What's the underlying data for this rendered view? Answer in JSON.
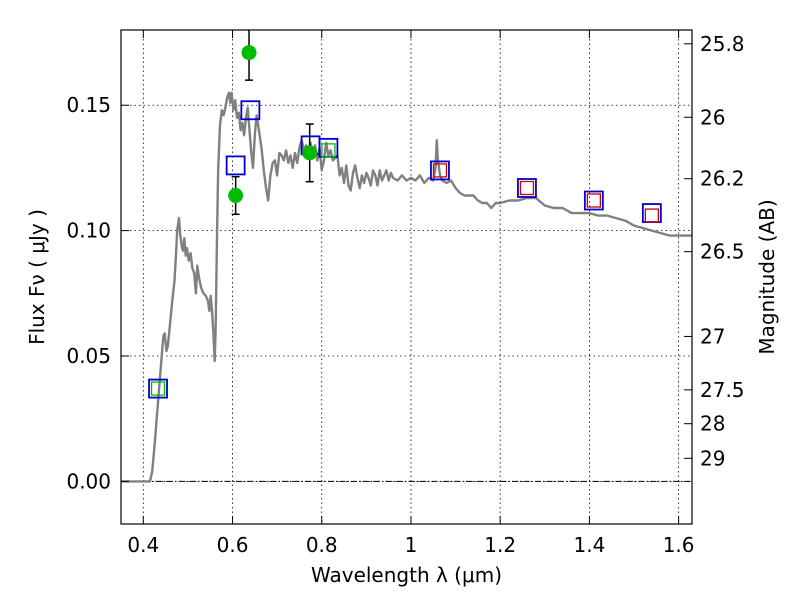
{
  "chart_data": {
    "type": "scatter",
    "title": "",
    "xlabel": "Wavelength  λ (μm)",
    "ylabel": "Flux  Fν  ( μJy )",
    "y2label": "Magnitude (AB)",
    "xlim": [
      0.35,
      1.63
    ],
    "ylim": [
      -0.017,
      0.18
    ],
    "xticks": [
      0.4,
      0.6,
      0.8,
      1.0,
      1.2,
      1.4,
      1.6
    ],
    "xtick_labels": [
      "0.4",
      "0.6",
      "0.8",
      "1",
      "1.2",
      "1.4",
      "1.6"
    ],
    "yticks": [
      0.0,
      0.05,
      0.1,
      0.15
    ],
    "ytick_labels": [
      "0.00",
      "0.05",
      "0.10",
      "0.15"
    ],
    "mag_ticks": [
      {
        "label": "25.8",
        "flux": 0.1745
      },
      {
        "label": "26",
        "flux": 0.1452
      },
      {
        "label": "26.2",
        "flux": 0.1207
      },
      {
        "label": "26.5",
        "flux": 0.0916
      },
      {
        "label": "27",
        "flux": 0.0578
      },
      {
        "label": "27.5",
        "flux": 0.0365
      },
      {
        "label": "28",
        "flux": 0.023
      },
      {
        "label": "29",
        "flux": 0.0092
      }
    ],
    "grid": true,
    "zero_line": 0.0,
    "series": [
      {
        "style": "sed_line",
        "color": "#808080",
        "points": [
          [
            0.35,
            0.0
          ],
          [
            0.415,
            0.0
          ],
          [
            0.42,
            0.004
          ],
          [
            0.425,
            0.014
          ],
          [
            0.43,
            0.025
          ],
          [
            0.435,
            0.036
          ],
          [
            0.44,
            0.047
          ],
          [
            0.445,
            0.058
          ],
          [
            0.448,
            0.059
          ],
          [
            0.452,
            0.052
          ],
          [
            0.455,
            0.054
          ],
          [
            0.46,
            0.063
          ],
          [
            0.465,
            0.072
          ],
          [
            0.47,
            0.08
          ],
          [
            0.473,
            0.09
          ],
          [
            0.476,
            0.1
          ],
          [
            0.48,
            0.105
          ],
          [
            0.483,
            0.098
          ],
          [
            0.486,
            0.094
          ],
          [
            0.489,
            0.092
          ],
          [
            0.492,
            0.097
          ],
          [
            0.495,
            0.09
          ],
          [
            0.498,
            0.093
          ],
          [
            0.502,
            0.088
          ],
          [
            0.506,
            0.091
          ],
          [
            0.51,
            0.085
          ],
          [
            0.514,
            0.083
          ],
          [
            0.518,
            0.075
          ],
          [
            0.521,
            0.086
          ],
          [
            0.525,
            0.081
          ],
          [
            0.53,
            0.077
          ],
          [
            0.535,
            0.075
          ],
          [
            0.54,
            0.074
          ],
          [
            0.545,
            0.072
          ],
          [
            0.548,
            0.068
          ],
          [
            0.551,
            0.074
          ],
          [
            0.554,
            0.068
          ],
          [
            0.557,
            0.06
          ],
          [
            0.56,
            0.048
          ],
          [
            0.562,
            0.06
          ],
          [
            0.565,
            0.095
          ],
          [
            0.568,
            0.125
          ],
          [
            0.572,
            0.142
          ],
          [
            0.576,
            0.148
          ],
          [
            0.58,
            0.146
          ],
          [
            0.584,
            0.149
          ],
          [
            0.588,
            0.153
          ],
          [
            0.592,
            0.155
          ],
          [
            0.595,
            0.151
          ],
          [
            0.598,
            0.155
          ],
          [
            0.602,
            0.148
          ],
          [
            0.606,
            0.152
          ],
          [
            0.61,
            0.145
          ],
          [
            0.614,
            0.147
          ],
          [
            0.618,
            0.14
          ],
          [
            0.622,
            0.143
          ],
          [
            0.626,
            0.138
          ],
          [
            0.63,
            0.145
          ],
          [
            0.634,
            0.149
          ],
          [
            0.638,
            0.14
          ],
          [
            0.642,
            0.131
          ],
          [
            0.646,
            0.125
          ],
          [
            0.65,
            0.138
          ],
          [
            0.654,
            0.146
          ],
          [
            0.66,
            0.139
          ],
          [
            0.665,
            0.133
          ],
          [
            0.67,
            0.124
          ],
          [
            0.675,
            0.117
          ],
          [
            0.68,
            0.112
          ],
          [
            0.685,
            0.122
          ],
          [
            0.69,
            0.127
          ],
          [
            0.695,
            0.128
          ],
          [
            0.7,
            0.122
          ],
          [
            0.705,
            0.131
          ],
          [
            0.71,
            0.13
          ],
          [
            0.715,
            0.128
          ],
          [
            0.72,
            0.132
          ],
          [
            0.725,
            0.127
          ],
          [
            0.73,
            0.13
          ],
          [
            0.735,
            0.125
          ],
          [
            0.74,
            0.131
          ],
          [
            0.745,
            0.127
          ],
          [
            0.75,
            0.133
          ],
          [
            0.755,
            0.136
          ],
          [
            0.76,
            0.132
          ],
          [
            0.765,
            0.134
          ],
          [
            0.77,
            0.132
          ],
          [
            0.775,
            0.135
          ],
          [
            0.78,
            0.13
          ],
          [
            0.785,
            0.134
          ],
          [
            0.79,
            0.128
          ],
          [
            0.795,
            0.133
          ],
          [
            0.8,
            0.124
          ],
          [
            0.805,
            0.128
          ],
          [
            0.81,
            0.135
          ],
          [
            0.815,
            0.13
          ],
          [
            0.82,
            0.132
          ],
          [
            0.825,
            0.128
          ],
          [
            0.83,
            0.129
          ],
          [
            0.835,
            0.13
          ],
          [
            0.84,
            0.122
          ],
          [
            0.845,
            0.125
          ],
          [
            0.85,
            0.119
          ],
          [
            0.855,
            0.126
          ],
          [
            0.86,
            0.118
          ],
          [
            0.865,
            0.116
          ],
          [
            0.87,
            0.123
          ],
          [
            0.875,
            0.126
          ],
          [
            0.88,
            0.121
          ],
          [
            0.885,
            0.117
          ],
          [
            0.89,
            0.122
          ],
          [
            0.895,
            0.119
          ],
          [
            0.9,
            0.123
          ],
          [
            0.905,
            0.121
          ],
          [
            0.91,
            0.118
          ],
          [
            0.915,
            0.124
          ],
          [
            0.92,
            0.122
          ],
          [
            0.925,
            0.118
          ],
          [
            0.93,
            0.124
          ],
          [
            0.935,
            0.12
          ],
          [
            0.94,
            0.122
          ],
          [
            0.945,
            0.124
          ],
          [
            0.95,
            0.12
          ],
          [
            0.955,
            0.123
          ],
          [
            0.96,
            0.121
          ],
          [
            0.97,
            0.12
          ],
          [
            0.98,
            0.122
          ],
          [
            0.99,
            0.12
          ],
          [
            1.0,
            0.121
          ],
          [
            1.01,
            0.12
          ],
          [
            1.02,
            0.122
          ],
          [
            1.03,
            0.119
          ],
          [
            1.04,
            0.121
          ],
          [
            1.05,
            0.12
          ],
          [
            1.055,
            0.125
          ],
          [
            1.058,
            0.136
          ],
          [
            1.06,
            0.129
          ],
          [
            1.065,
            0.122
          ],
          [
            1.07,
            0.12
          ],
          [
            1.08,
            0.119
          ],
          [
            1.09,
            0.12
          ],
          [
            1.1,
            0.117
          ],
          [
            1.11,
            0.115
          ],
          [
            1.12,
            0.114
          ],
          [
            1.14,
            0.114
          ],
          [
            1.15,
            0.112
          ],
          [
            1.16,
            0.111
          ],
          [
            1.17,
            0.111
          ],
          [
            1.18,
            0.109
          ],
          [
            1.19,
            0.111
          ],
          [
            1.2,
            0.111
          ],
          [
            1.22,
            0.112
          ],
          [
            1.24,
            0.112
          ],
          [
            1.26,
            0.113
          ],
          [
            1.28,
            0.113
          ],
          [
            1.3,
            0.11
          ],
          [
            1.32,
            0.109
          ],
          [
            1.34,
            0.109
          ],
          [
            1.36,
            0.107
          ],
          [
            1.38,
            0.107
          ],
          [
            1.4,
            0.107
          ],
          [
            1.42,
            0.106
          ],
          [
            1.44,
            0.106
          ],
          [
            1.46,
            0.105
          ],
          [
            1.48,
            0.104
          ],
          [
            1.5,
            0.102
          ],
          [
            1.52,
            0.101
          ],
          [
            1.54,
            0.1
          ],
          [
            1.56,
            0.099
          ],
          [
            1.58,
            0.098
          ],
          [
            1.6,
            0.098
          ],
          [
            1.63,
            0.098
          ]
        ]
      },
      {
        "style": "blue_square",
        "color": "#0000cc",
        "points": [
          [
            0.433,
            0.037
          ],
          [
            0.607,
            0.126
          ],
          [
            0.64,
            0.148
          ],
          [
            0.775,
            0.134
          ],
          [
            0.815,
            0.133
          ],
          [
            1.065,
            0.124
          ],
          [
            1.26,
            0.117
          ],
          [
            1.41,
            0.112
          ],
          [
            1.54,
            0.107
          ]
        ]
      },
      {
        "style": "green_open_square",
        "color": "#00bb00",
        "points": [
          [
            0.433,
            0.037
          ],
          [
            0.815,
            0.132
          ]
        ]
      },
      {
        "style": "red_open_square",
        "color": "#cc0000",
        "points": [
          [
            1.065,
            0.124
          ],
          [
            1.26,
            0.117
          ],
          [
            1.41,
            0.112
          ],
          [
            1.54,
            0.106
          ]
        ]
      },
      {
        "style": "green_point_errorbar",
        "color": "#00bb00",
        "points": [
          {
            "x": 0.607,
            "y": 0.114,
            "err": 0.0075
          },
          {
            "x": 0.637,
            "y": 0.171,
            "err": 0.011
          },
          {
            "x": 0.773,
            "y": 0.131,
            "err": 0.0115
          }
        ]
      }
    ]
  }
}
